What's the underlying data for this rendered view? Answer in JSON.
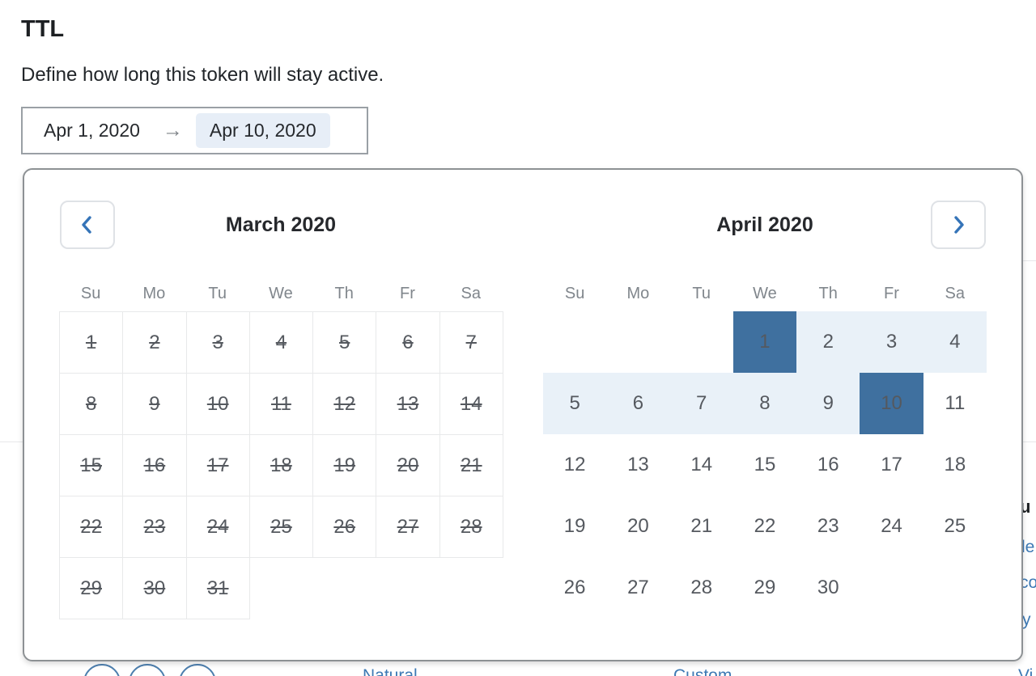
{
  "page": {
    "title": "TTL",
    "subtitle": "Define how long this token will stay active."
  },
  "range_input": {
    "start_value": "Apr 1, 2020",
    "arrow_icon": "→",
    "end_value": "Apr 10, 2020"
  },
  "calendar": {
    "weekdays": [
      "Su",
      "Mo",
      "Tu",
      "We",
      "Th",
      "Fr",
      "Sa"
    ],
    "prev_icon": "chevron-left",
    "next_icon": "chevron-right",
    "colors": {
      "selected_bg": "#3f709f",
      "range_bg": "#e9f1f8",
      "range_text": "#3a6da1",
      "disabled_text": "#b5b9bd"
    },
    "months": [
      {
        "title": "March 2020",
        "bordered": true,
        "weeks": [
          [
            {
              "d": "1",
              "state": "disabled"
            },
            {
              "d": "2",
              "state": "disabled"
            },
            {
              "d": "3",
              "state": "disabled"
            },
            {
              "d": "4",
              "state": "disabled"
            },
            {
              "d": "5",
              "state": "disabled"
            },
            {
              "d": "6",
              "state": "disabled"
            },
            {
              "d": "7",
              "state": "disabled"
            }
          ],
          [
            {
              "d": "8",
              "state": "disabled"
            },
            {
              "d": "9",
              "state": "disabled"
            },
            {
              "d": "10",
              "state": "disabled"
            },
            {
              "d": "11",
              "state": "disabled"
            },
            {
              "d": "12",
              "state": "disabled"
            },
            {
              "d": "13",
              "state": "disabled"
            },
            {
              "d": "14",
              "state": "disabled"
            }
          ],
          [
            {
              "d": "15",
              "state": "disabled"
            },
            {
              "d": "16",
              "state": "disabled"
            },
            {
              "d": "17",
              "state": "disabled"
            },
            {
              "d": "18",
              "state": "disabled"
            },
            {
              "d": "19",
              "state": "disabled"
            },
            {
              "d": "20",
              "state": "disabled"
            },
            {
              "d": "21",
              "state": "disabled"
            }
          ],
          [
            {
              "d": "22",
              "state": "disabled"
            },
            {
              "d": "23",
              "state": "disabled"
            },
            {
              "d": "24",
              "state": "disabled"
            },
            {
              "d": "25",
              "state": "disabled"
            },
            {
              "d": "26",
              "state": "disabled"
            },
            {
              "d": "27",
              "state": "disabled"
            },
            {
              "d": "28",
              "state": "disabled"
            }
          ],
          [
            {
              "d": "29",
              "state": "disabled"
            },
            {
              "d": "30",
              "state": "disabled"
            },
            {
              "d": "31",
              "state": "disabled"
            },
            null,
            null,
            null,
            null
          ]
        ]
      },
      {
        "title": "April 2020",
        "bordered": false,
        "weeks": [
          [
            null,
            null,
            null,
            {
              "d": "1",
              "state": "start"
            },
            {
              "d": "2",
              "state": "range"
            },
            {
              "d": "3",
              "state": "range"
            },
            {
              "d": "4",
              "state": "range"
            }
          ],
          [
            {
              "d": "5",
              "state": "range"
            },
            {
              "d": "6",
              "state": "range"
            },
            {
              "d": "7",
              "state": "range"
            },
            {
              "d": "8",
              "state": "range"
            },
            {
              "d": "9",
              "state": "range"
            },
            {
              "d": "10",
              "state": "end"
            },
            {
              "d": "11",
              "state": "normal"
            }
          ],
          [
            {
              "d": "12",
              "state": "normal"
            },
            {
              "d": "13",
              "state": "normal"
            },
            {
              "d": "14",
              "state": "normal"
            },
            {
              "d": "15",
              "state": "normal"
            },
            {
              "d": "16",
              "state": "normal"
            },
            {
              "d": "17",
              "state": "normal"
            },
            {
              "d": "18",
              "state": "normal"
            }
          ],
          [
            {
              "d": "19",
              "state": "normal"
            },
            {
              "d": "20",
              "state": "normal"
            },
            {
              "d": "21",
              "state": "normal"
            },
            {
              "d": "22",
              "state": "normal"
            },
            {
              "d": "23",
              "state": "normal"
            },
            {
              "d": "24",
              "state": "normal"
            },
            {
              "d": "25",
              "state": "normal"
            }
          ],
          [
            {
              "d": "26",
              "state": "normal"
            },
            {
              "d": "27",
              "state": "normal"
            },
            {
              "d": "28",
              "state": "normal"
            },
            {
              "d": "29",
              "state": "normal"
            },
            {
              "d": "30",
              "state": "normal"
            },
            null,
            null
          ]
        ]
      }
    ]
  },
  "background": {
    "heading_fragment": "u",
    "link_fragments": [
      "le",
      "co",
      "y"
    ],
    "bottom_links": [
      "Natural",
      "Custom",
      "Vi"
    ]
  }
}
